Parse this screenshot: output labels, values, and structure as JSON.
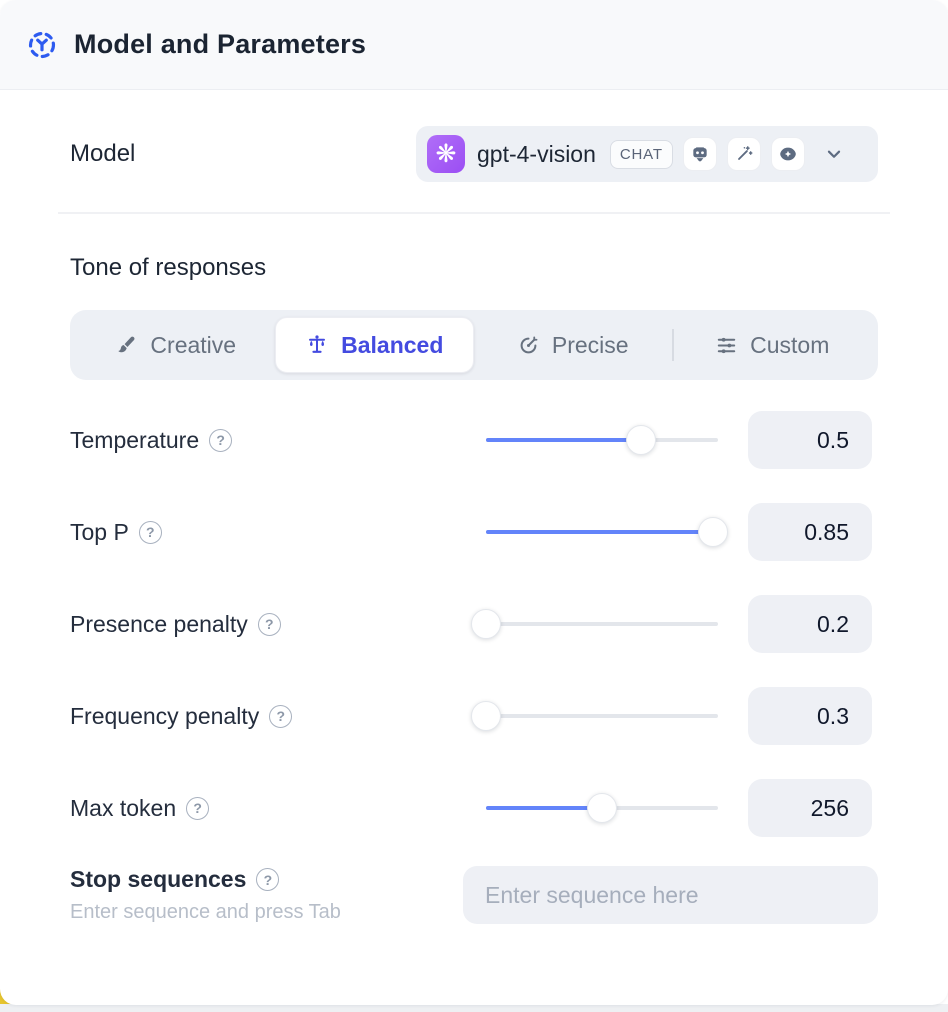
{
  "header": {
    "title": "Model and Parameters"
  },
  "model": {
    "label": "Model",
    "selected_model": "gpt-4-vision",
    "badge": "CHAT",
    "provider_icon": "openai-logo",
    "capability_icons": [
      "chatbot-icon",
      "magic-wand-icon",
      "vision-icon"
    ]
  },
  "tone": {
    "heading": "Tone of responses",
    "options": [
      {
        "label": "Creative",
        "icon": "paintbrush-icon",
        "selected": false
      },
      {
        "label": "Balanced",
        "icon": "balance-scale-icon",
        "selected": true
      },
      {
        "label": "Precise",
        "icon": "target-arrow-icon",
        "selected": false
      },
      {
        "label": "Custom",
        "icon": "sliders-icon",
        "selected": false
      }
    ]
  },
  "parameters": [
    {
      "label": "Temperature",
      "value": "0.5",
      "fill_pct": 67
    },
    {
      "label": "Top P",
      "value": "0.85",
      "fill_pct": 98
    },
    {
      "label": "Presence penalty",
      "value": "0.2",
      "fill_pct": 0
    },
    {
      "label": "Frequency penalty",
      "value": "0.3",
      "fill_pct": 0
    },
    {
      "label": "Max token",
      "value": "256",
      "fill_pct": 50
    }
  ],
  "stop_sequences": {
    "label": "Stop sequences",
    "helper": "Enter sequence and press Tab",
    "placeholder": "Enter sequence here"
  },
  "colors": {
    "accent_indigo": "#444be0",
    "slider_blue": "#6384fa",
    "header_icon_blue": "#2d5bf0",
    "openai_purple": "#a561f6",
    "control_bg": "#edf0f5",
    "corner_yellow": "#e7c52f"
  }
}
